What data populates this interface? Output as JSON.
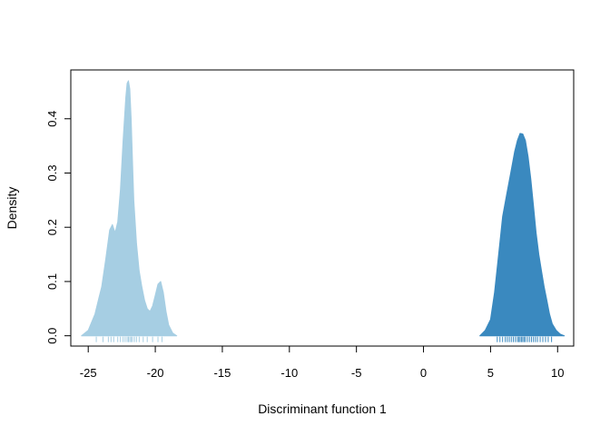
{
  "chart_data": {
    "type": "area",
    "title": "",
    "xlabel": "Discriminant function 1",
    "ylabel": "Density",
    "xlim": [
      -26.3,
      11.2
    ],
    "ylim": [
      -0.019,
      0.49
    ],
    "x_ticks": [
      -25,
      -20,
      -15,
      -10,
      -5,
      0,
      5,
      10
    ],
    "y_ticks": [
      0.0,
      0.1,
      0.2,
      0.3,
      0.4
    ],
    "y_tick_labels": [
      "0.0",
      "0.1",
      "0.2",
      "0.3",
      "0.4"
    ],
    "grid": false,
    "legend": "none",
    "series": [
      {
        "color": "#A6CEE3",
        "x": [
          -25.5,
          -25.0,
          -24.5,
          -24.2,
          -24.0,
          -23.7,
          -23.4,
          -23.2,
          -23.0,
          -22.8,
          -22.6,
          -22.4,
          -22.2,
          -22.1,
          -22.0,
          -21.9,
          -21.8,
          -21.7,
          -21.6,
          -21.4,
          -21.2,
          -21.0,
          -20.8,
          -20.6,
          -20.4,
          -20.2,
          -20.0,
          -19.8,
          -19.6,
          -19.4,
          -19.2,
          -19.0,
          -18.7,
          -18.4
        ],
        "y": [
          0.0,
          0.01,
          0.04,
          0.07,
          0.09,
          0.14,
          0.195,
          0.205,
          0.19,
          0.21,
          0.27,
          0.36,
          0.44,
          0.465,
          0.47,
          0.455,
          0.4,
          0.32,
          0.25,
          0.17,
          0.12,
          0.09,
          0.065,
          0.05,
          0.045,
          0.055,
          0.075,
          0.095,
          0.1,
          0.08,
          0.045,
          0.02,
          0.005,
          0.0
        ]
      },
      {
        "color": "#3A89BF",
        "x": [
          4.2,
          4.6,
          5.0,
          5.3,
          5.6,
          5.9,
          6.2,
          6.5,
          6.8,
          7.0,
          7.2,
          7.4,
          7.6,
          7.8,
          8.0,
          8.2,
          8.4,
          8.6,
          8.8,
          9.0,
          9.2,
          9.4,
          9.6,
          9.9,
          10.2,
          10.5
        ],
        "y": [
          0.0,
          0.01,
          0.03,
          0.08,
          0.15,
          0.22,
          0.26,
          0.3,
          0.34,
          0.36,
          0.373,
          0.372,
          0.36,
          0.33,
          0.29,
          0.24,
          0.19,
          0.15,
          0.12,
          0.09,
          0.065,
          0.04,
          0.022,
          0.01,
          0.003,
          0.0
        ]
      }
    ],
    "rug": [
      {
        "color": "#A6CEE3",
        "x": [
          -24.4,
          -23.9,
          -23.5,
          -23.3,
          -23.1,
          -22.8,
          -22.6,
          -22.4,
          -22.25,
          -22.1,
          -22.0,
          -21.9,
          -21.8,
          -21.7,
          -21.55,
          -21.4,
          -21.2,
          -20.9,
          -20.6,
          -20.2,
          -19.8,
          -19.5
        ]
      },
      {
        "color": "#3A89BF",
        "x": [
          5.5,
          5.7,
          5.9,
          6.1,
          6.25,
          6.4,
          6.55,
          6.7,
          6.85,
          7.0,
          7.1,
          7.2,
          7.3,
          7.4,
          7.5,
          7.6,
          7.75,
          7.9,
          8.05,
          8.2,
          8.35,
          8.5,
          8.7,
          8.9,
          9.1,
          9.3,
          9.55
        ]
      }
    ]
  }
}
